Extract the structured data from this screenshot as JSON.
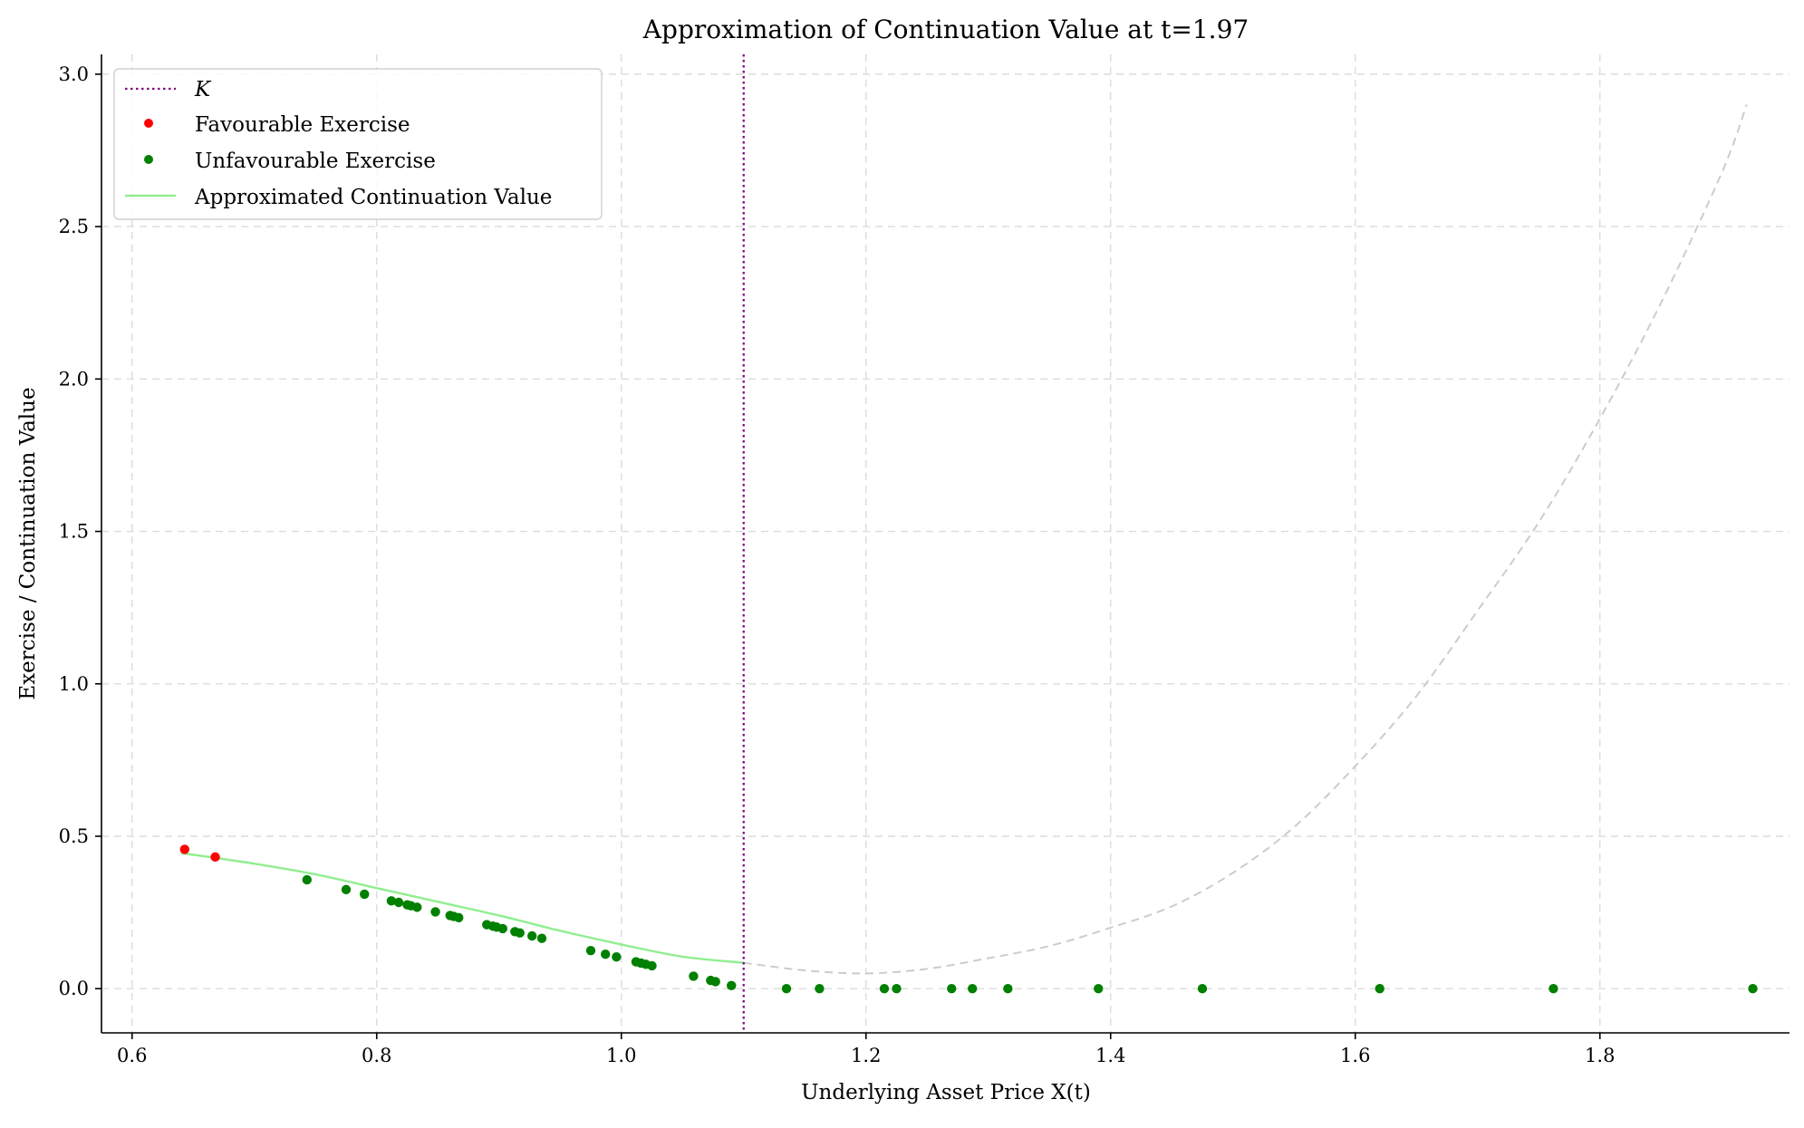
{
  "chart_data": {
    "type": "scatter",
    "title": "Approximation of Continuation Value at t=1.97",
    "xlabel": "Underlying Asset Price X(t)",
    "ylabel": "Exercise / Continuation Value",
    "xlim": [
      0.575,
      1.955
    ],
    "ylim": [
      -0.145,
      3.065
    ],
    "x_ticks": [
      0.6,
      0.8,
      1.0,
      1.2,
      1.4,
      1.6,
      1.8
    ],
    "x_tick_labels": [
      "0.6",
      "0.8",
      "1.0",
      "1.2",
      "1.4",
      "1.6",
      "1.8"
    ],
    "y_ticks": [
      0.0,
      0.5,
      1.0,
      1.5,
      2.0,
      2.5,
      3.0
    ],
    "y_tick_labels": [
      "0.0",
      "0.5",
      "1.0",
      "1.5",
      "2.0",
      "2.5",
      "3.0"
    ],
    "grid": true,
    "legend_position": "top-left",
    "legend": [
      {
        "label": "K",
        "style": "dotted-line",
        "color": "#800080"
      },
      {
        "label": "Favourable Exercise",
        "style": "marker",
        "color": "#ff0000"
      },
      {
        "label": "Unfavourable Exercise",
        "style": "marker",
        "color": "#008000"
      },
      {
        "label": "Approximated Continuation Value",
        "style": "line",
        "color": "#90ee90"
      }
    ],
    "strike": {
      "x": 1.1,
      "color": "#800080"
    },
    "continuation_curve": {
      "color": "#90ee90",
      "x": [
        0.64,
        0.7,
        0.75,
        0.8,
        0.85,
        0.9,
        0.95,
        1.0,
        1.05,
        1.1
      ],
      "y": [
        0.445,
        0.41,
        0.375,
        0.33,
        0.285,
        0.24,
        0.19,
        0.145,
        0.105,
        0.085
      ]
    },
    "extrapolated_curve": {
      "color": "#cccccc",
      "x": [
        1.1,
        1.15,
        1.2,
        1.25,
        1.3,
        1.35,
        1.4,
        1.45,
        1.5,
        1.55,
        1.6,
        1.65,
        1.7,
        1.75,
        1.8,
        1.85,
        1.9,
        1.92
      ],
      "y": [
        0.085,
        0.06,
        0.05,
        0.065,
        0.1,
        0.14,
        0.2,
        0.27,
        0.38,
        0.53,
        0.73,
        0.96,
        1.24,
        1.53,
        1.87,
        2.25,
        2.68,
        2.9
      ]
    },
    "series": [
      {
        "name": "Favourable Exercise",
        "color": "#ff0000",
        "points": [
          [
            0.643,
            0.457
          ],
          [
            0.668,
            0.432
          ]
        ]
      },
      {
        "name": "Unfavourable Exercise",
        "color": "#008000",
        "points": [
          [
            0.743,
            0.357
          ],
          [
            0.775,
            0.325
          ],
          [
            0.79,
            0.31
          ],
          [
            0.812,
            0.288
          ],
          [
            0.818,
            0.283
          ],
          [
            0.825,
            0.275
          ],
          [
            0.828,
            0.272
          ],
          [
            0.833,
            0.267
          ],
          [
            0.848,
            0.252
          ],
          [
            0.86,
            0.24
          ],
          [
            0.863,
            0.237
          ],
          [
            0.867,
            0.233
          ],
          [
            0.89,
            0.21
          ],
          [
            0.895,
            0.205
          ],
          [
            0.898,
            0.202
          ],
          [
            0.903,
            0.197
          ],
          [
            0.913,
            0.187
          ],
          [
            0.917,
            0.183
          ],
          [
            0.927,
            0.173
          ],
          [
            0.935,
            0.165
          ],
          [
            0.975,
            0.125
          ],
          [
            0.987,
            0.113
          ],
          [
            0.996,
            0.104
          ],
          [
            1.012,
            0.088
          ],
          [
            1.016,
            0.084
          ],
          [
            1.02,
            0.08
          ],
          [
            1.025,
            0.075
          ],
          [
            1.059,
            0.041
          ],
          [
            1.073,
            0.027
          ],
          [
            1.077,
            0.023
          ],
          [
            1.09,
            0.01
          ],
          [
            1.135,
            0.0
          ],
          [
            1.162,
            0.0
          ],
          [
            1.215,
            0.0
          ],
          [
            1.225,
            0.0
          ],
          [
            1.27,
            0.0
          ],
          [
            1.287,
            0.0
          ],
          [
            1.316,
            0.0
          ],
          [
            1.39,
            0.0
          ],
          [
            1.475,
            0.0
          ],
          [
            1.62,
            0.0
          ],
          [
            1.762,
            0.0
          ],
          [
            1.925,
            0.0
          ]
        ]
      }
    ]
  }
}
